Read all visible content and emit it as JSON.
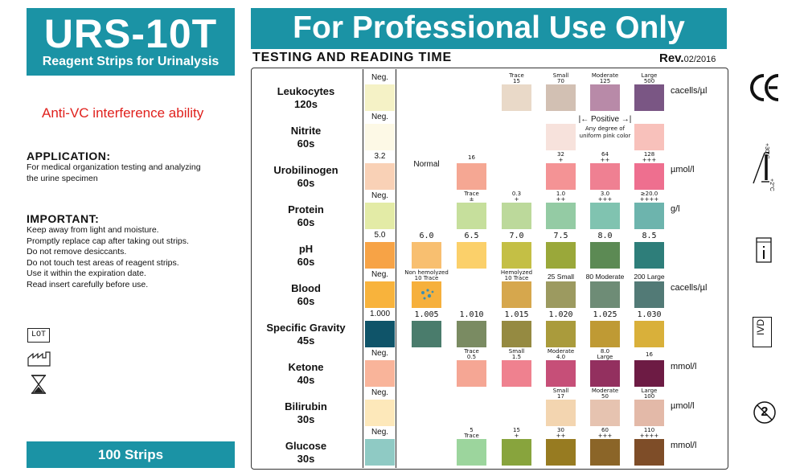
{
  "header": {
    "brand_title": "URS-10T",
    "brand_subtitle": "Reagent Strips for Urinalysis",
    "anti_vc": "Anti-VC interference ability",
    "pro_banner": "For Professional Use Only",
    "testing_title": "TESTING AND READING TIME",
    "rev_label": "Rev.",
    "rev_date": "02/2016"
  },
  "application": {
    "title": "APPLICATION:",
    "lines": [
      "For medical organization testing and analyzing",
      "the urine specimen"
    ]
  },
  "important": {
    "title": "IMPORTANT:",
    "lines": [
      "Keep away from light and moisture.",
      "Promptly replace cap after taking out strips.",
      "Do not remove desiccants.",
      "Do not touch test areas of reagent strips.",
      "Use it within the expiration date.",
      "Read insert carefully before use."
    ]
  },
  "symbols": {
    "lot": "LOT",
    "manufacture_icon": "factory-icon",
    "hourglass_icon": "hourglass-icon"
  },
  "strips_count": "100 Strips",
  "right_symbols": {
    "ce": "CE",
    "temp_hi": "+30°C",
    "temp_lo": "+2°C",
    "ivd": "IVD",
    "single_use": "2",
    "manual_icon": "book-icon"
  },
  "rows": [
    {
      "name": "Leukocytes",
      "time": "120s",
      "unit": "cacells/µl",
      "labels": [
        [
          "Neg.",
          ""
        ],
        [
          "",
          ""
        ],
        [
          "",
          ""
        ],
        [
          "Trace",
          "15"
        ],
        [
          "Small",
          "70"
        ],
        [
          "Moderate",
          "125"
        ],
        [
          "Large",
          "500"
        ]
      ],
      "colors": [
        "#f5f2c6",
        "",
        "",
        "#e9d9c8",
        "#d2c0b3",
        "#b88aa8",
        "#7a5684"
      ]
    },
    {
      "name": "Nitrite",
      "time": "60s",
      "unit": "",
      "labels": [
        [
          "Neg.",
          ""
        ]
      ],
      "positive": "Positive",
      "positive_note": [
        "Any degree of",
        "uniform pink color"
      ],
      "colors": [
        "#fdf9e6",
        "",
        "",
        "",
        "#f7e2dc",
        "",
        "#f8c1bb"
      ]
    },
    {
      "name": "Urobilinogen",
      "time": "60s",
      "unit": "µmol/l",
      "labels": [
        [
          "3.2",
          ""
        ],
        [
          "Normal",
          ""
        ],
        [
          "16",
          ""
        ],
        [
          "",
          ""
        ],
        [
          "32",
          "+"
        ],
        [
          "64",
          "++"
        ],
        [
          "128",
          "+++"
        ]
      ],
      "colors": [
        "#f9d1b6",
        "",
        "#f5a793",
        "",
        "#f49395",
        "#ef8092",
        "#ee6f8f"
      ]
    },
    {
      "name": "Protein",
      "time": "60s",
      "unit": "g/l",
      "labels": [
        [
          "Neg.",
          ""
        ],
        [
          "",
          ""
        ],
        [
          "Trace",
          "±"
        ],
        [
          "0.3",
          "+"
        ],
        [
          "1.0",
          "++"
        ],
        [
          "3.0",
          "+++"
        ],
        [
          "≥20.0",
          "++++"
        ]
      ],
      "colors": [
        "#e3eba6",
        "",
        "#c6df9c",
        "#bcd99b",
        "#94cba4",
        "#80c3b0",
        "#6db4ad"
      ]
    },
    {
      "name": "pH",
      "time": "60s",
      "unit": "",
      "labels": [
        [
          "5.0",
          ""
        ],
        [
          "6.0",
          ""
        ],
        [
          "6.5",
          ""
        ],
        [
          "7.0",
          ""
        ],
        [
          "7.5",
          ""
        ],
        [
          "8.0",
          ""
        ],
        [
          "8.5",
          ""
        ]
      ],
      "colors": [
        "#f7a346",
        "#f8bf70",
        "#fbd06a",
        "#c4bf45",
        "#9aa83a",
        "#5c8a54",
        "#2e7e7a"
      ]
    },
    {
      "name": "Blood",
      "time": "60s",
      "unit": "cacells/µl",
      "labels": [
        [
          "Neg.",
          ""
        ],
        [
          "Non hemolyzed",
          "10 Trace"
        ],
        [
          "",
          ""
        ],
        [
          "Hemolyzed",
          "10 Trace"
        ],
        [
          "25 Small",
          ""
        ],
        [
          "80 Moderate",
          ""
        ],
        [
          "200 Large",
          ""
        ]
      ],
      "colors": [
        "#f8b33c",
        "#f6b03c",
        "",
        "#d6a74d",
        "#9c9a60",
        "#6e8c76",
        "#527a76"
      ]
    },
    {
      "name": "Specific Gravity",
      "time": "45s",
      "unit": "",
      "labels": [
        [
          "1.000",
          ""
        ],
        [
          "1.005",
          ""
        ],
        [
          "1.010",
          ""
        ],
        [
          "1.015",
          ""
        ],
        [
          "1.020",
          ""
        ],
        [
          "1.025",
          ""
        ],
        [
          "1.030",
          ""
        ]
      ],
      "colors": [
        "#0f5469",
        "#4a7c6c",
        "#7a8b62",
        "#958a41",
        "#aa9b3c",
        "#bf9a34",
        "#d9b03a"
      ]
    },
    {
      "name": "Ketone",
      "time": "40s",
      "unit": "mmol/l",
      "labels": [
        [
          "Neg.",
          ""
        ],
        [
          "",
          ""
        ],
        [
          "Trace",
          "0.5"
        ],
        [
          "Small",
          "1.5"
        ],
        [
          "Moderate",
          "4.0"
        ],
        [
          "8.0",
          "Large"
        ],
        [
          "16",
          ""
        ]
      ],
      "colors": [
        "#f9b49a",
        "",
        "#f5a694",
        "#ef818f",
        "#c64f78",
        "#93305f",
        "#6d1b44"
      ]
    },
    {
      "name": "Bilirubin",
      "time": "30s",
      "unit": "µmol/l",
      "labels": [
        [
          "Neg.",
          ""
        ],
        [
          "",
          ""
        ],
        [
          "",
          ""
        ],
        [
          "",
          ""
        ],
        [
          "Small",
          "17"
        ],
        [
          "Moderate",
          "50"
        ],
        [
          "Large",
          "100"
        ]
      ],
      "colors": [
        "#fde8ba",
        "",
        "",
        "",
        "#f3d5b0",
        "#e6c3b0",
        "#e3b9a8"
      ]
    },
    {
      "name": "Glucose",
      "time": "30s",
      "unit": "mmol/l",
      "labels": [
        [
          "Neg.",
          ""
        ],
        [
          "",
          ""
        ],
        [
          "5",
          "Trace"
        ],
        [
          "15",
          "+"
        ],
        [
          "30",
          "++"
        ],
        [
          "60",
          "+++"
        ],
        [
          "110",
          "++++"
        ]
      ],
      "colors": [
        "#8fcac4",
        "",
        "#9cd59d",
        "#88a43d",
        "#977b21",
        "#8b6528",
        "#7e4d28"
      ]
    }
  ]
}
